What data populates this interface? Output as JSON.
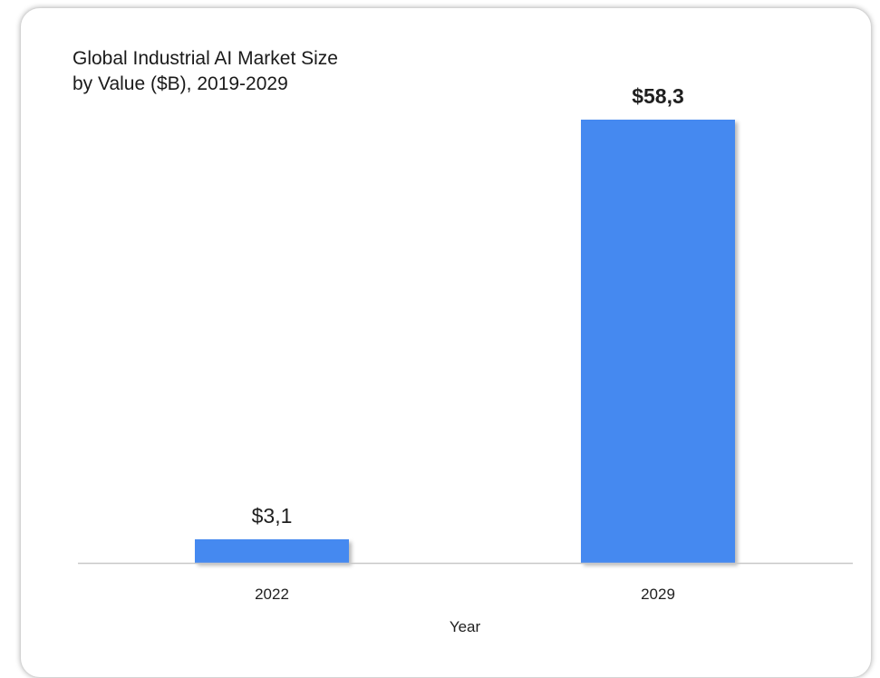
{
  "chart_data": {
    "type": "bar",
    "title": [
      "Global Industrial AI Market Size",
      "by Value ($B), 2019-2029"
    ],
    "categories": [
      "2022",
      "2029"
    ],
    "values": [
      3.1,
      58.3
    ],
    "value_labels": [
      "$3,1",
      "$58,3"
    ],
    "xlabel": "Year",
    "ylabel": "",
    "ylim": [
      0,
      70
    ],
    "grid": false,
    "legend": "none",
    "bar_color": "#4589f0",
    "axis_color": "#c8c8c8"
  }
}
